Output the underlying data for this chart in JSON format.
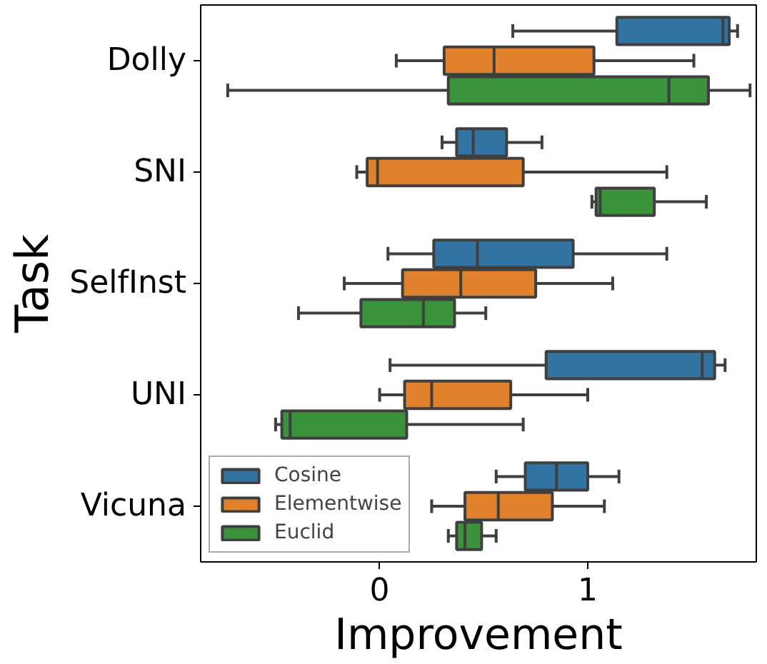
{
  "chart_data": {
    "type": "box",
    "orientation": "horizontal",
    "xlabel": "Improvement",
    "ylabel": "Task",
    "categories": [
      "Dolly",
      "SNI",
      "SelfInst",
      "UNI",
      "Vicuna"
    ],
    "xlim": [
      -0.86,
      1.81
    ],
    "xticks": [
      0,
      1
    ],
    "grid": false,
    "legend": "bottom left",
    "series": [
      {
        "name": "Cosine",
        "color": "#3274a1",
        "boxes": [
          {
            "low": 0.64,
            "q1": 1.14,
            "median": 1.65,
            "q3": 1.68,
            "high": 1.72
          },
          {
            "low": 0.3,
            "q1": 0.37,
            "median": 0.45,
            "q3": 0.61,
            "high": 0.78
          },
          {
            "low": 0.04,
            "q1": 0.26,
            "median": 0.47,
            "q3": 0.93,
            "high": 1.38
          },
          {
            "low": 0.05,
            "q1": 0.8,
            "median": 1.55,
            "q3": 1.61,
            "high": 1.66
          },
          {
            "low": 0.56,
            "q1": 0.7,
            "median": 0.85,
            "q3": 1.0,
            "high": 1.15
          }
        ]
      },
      {
        "name": "Elementwise",
        "color": "#e1812c",
        "boxes": [
          {
            "low": 0.08,
            "q1": 0.31,
            "median": 0.55,
            "q3": 1.03,
            "high": 1.51
          },
          {
            "low": -0.11,
            "q1": -0.06,
            "median": -0.01,
            "q3": 0.69,
            "high": 1.38
          },
          {
            "low": -0.17,
            "q1": 0.11,
            "median": 0.39,
            "q3": 0.75,
            "high": 1.12
          },
          {
            "low": 0.0,
            "q1": 0.12,
            "median": 0.25,
            "q3": 0.63,
            "high": 1.0
          },
          {
            "low": 0.25,
            "q1": 0.41,
            "median": 0.57,
            "q3": 0.83,
            "high": 1.08
          }
        ]
      },
      {
        "name": "Euclid",
        "color": "#3a923a",
        "boxes": [
          {
            "low": -0.73,
            "q1": 0.33,
            "median": 1.39,
            "q3": 1.58,
            "high": 1.78
          },
          {
            "low": 1.02,
            "q1": 1.04,
            "median": 1.06,
            "q3": 1.32,
            "high": 1.57
          },
          {
            "low": -0.39,
            "q1": -0.09,
            "median": 0.21,
            "q3": 0.36,
            "high": 0.51
          },
          {
            "low": -0.5,
            "q1": -0.47,
            "median": -0.43,
            "q3": 0.13,
            "high": 0.69
          },
          {
            "low": 0.33,
            "q1": 0.37,
            "median": 0.41,
            "q3": 0.49,
            "high": 0.56
          }
        ]
      }
    ]
  }
}
